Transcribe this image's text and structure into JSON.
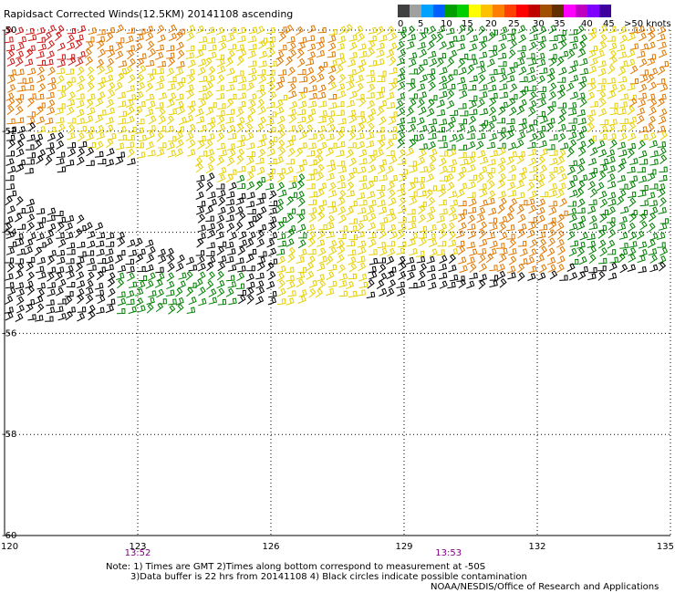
{
  "title": "Rapidsact Corrected Winds(12.5KM) 20141108 ascending",
  "legend": {
    "unit_label": "knots",
    "ticks": [
      "0",
      "5",
      "10",
      "15",
      "20",
      "25",
      "30",
      "35",
      "40",
      "45",
      ">50"
    ],
    "colors": [
      "#404040",
      "#a0a0a0",
      "#00a0ff",
      "#0060ff",
      "#00a000",
      "#00d000",
      "#ffff00",
      "#ffc000",
      "#ff8000",
      "#ff4000",
      "#ff0000",
      "#c00000",
      "#a05000",
      "#603000",
      "#ff00ff",
      "#c000c0",
      "#8000ff",
      "#4000a0"
    ]
  },
  "chart_data": {
    "type": "scatter",
    "title": "Rapidsact Corrected Winds(12.5KM) 20141108 ascending",
    "x_ticks": [
      "120",
      "123",
      "126",
      "129",
      "132",
      "135"
    ],
    "y_ticks": [
      "-50",
      "-52",
      "-54",
      "-56",
      "-58",
      "-60"
    ],
    "xlim": [
      120,
      135
    ],
    "ylim": [
      -60,
      -50
    ],
    "grid": true,
    "time_labels": [
      {
        "lon": 123,
        "text": "13:52"
      },
      {
        "lon": 130,
        "text": "13:53"
      }
    ],
    "swath_colors": {
      "black": "#000000",
      "yellow": "#e6d000",
      "orange": "#e07800",
      "red": "#d01818",
      "green": "#008000",
      "blue": "#0000c0"
    }
  },
  "notes": {
    "line1": "Note: 1) Times are GMT 2)Times along bottom correspond to measurement at -50S",
    "line2": "3)Data buffer is 22 hrs from 20141108 4) Black circles indicate possible contamination",
    "line3": "NOAA/NESDIS/Office of Research and Applications"
  }
}
